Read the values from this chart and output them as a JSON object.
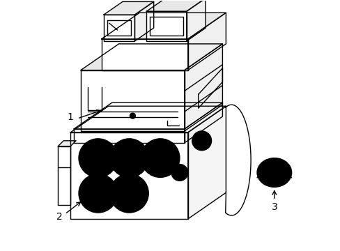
{
  "background_color": "#ffffff",
  "line_color": "#000000",
  "line_width": 1.0,
  "figsize": [
    4.89,
    3.6
  ],
  "dpi": 100
}
